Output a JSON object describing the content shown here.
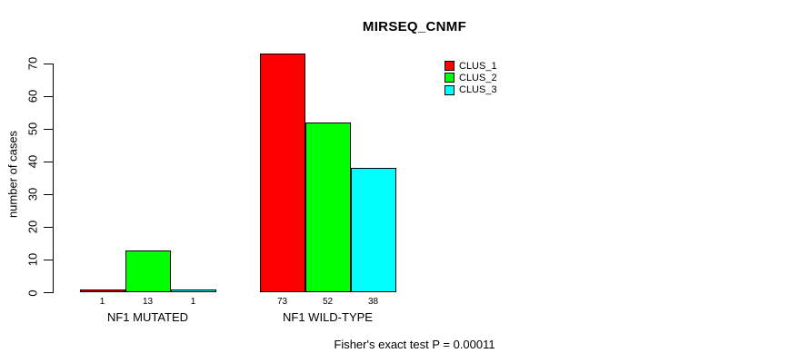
{
  "title": "MIRSEQ_CNMF",
  "y_axis": {
    "label": "number of cases",
    "ticks": [
      0,
      10,
      20,
      30,
      40,
      50,
      60,
      70
    ]
  },
  "footer": "Fisher's exact test P = 0.00011",
  "chart_data": {
    "type": "bar",
    "title": "MIRSEQ_CNMF",
    "ylabel": "number of cases",
    "xlabel": "",
    "categories": [
      "NF1 MUTATED",
      "NF1 WILD-TYPE"
    ],
    "series": [
      {
        "name": "CLUS_1",
        "color": "#ff0000",
        "values": [
          1,
          73
        ]
      },
      {
        "name": "CLUS_2",
        "color": "#00ff00",
        "values": [
          13,
          52
        ]
      },
      {
        "name": "CLUS_3",
        "color": "#00ffff",
        "values": [
          1,
          38
        ]
      }
    ],
    "bar_value_labels": [
      [
        "1",
        "13",
        "1"
      ],
      [
        "73",
        "52",
        "38"
      ]
    ],
    "yticks": [
      0,
      10,
      20,
      30,
      40,
      50,
      60,
      70
    ],
    "ylim": [
      0,
      73
    ],
    "grid": false,
    "legend_position": "top-right",
    "annotation": "Fisher's exact test P = 0.00011"
  }
}
